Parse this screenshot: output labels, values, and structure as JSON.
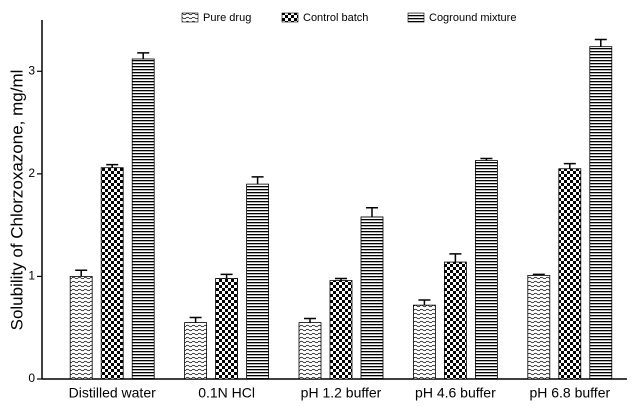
{
  "chart_data": {
    "type": "bar",
    "y_label": "Solubility of Chlorzoxazone, mg/ml",
    "categories": [
      "Distilled water",
      "0.1N HCl",
      "pH 1.2 buffer",
      "pH 4.6 buffer",
      "pH 6.8 buffer"
    ],
    "series": [
      {
        "name": "Pure drug",
        "color": "#000000",
        "pattern": "wave",
        "values": [
          1.0,
          0.55,
          0.55,
          0.72,
          1.01
        ],
        "errors": [
          0.06,
          0.05,
          0.04,
          0.05,
          0.01
        ]
      },
      {
        "name": "Control batch",
        "color": "#000000",
        "pattern": "checker",
        "values": [
          2.06,
          0.98,
          0.96,
          1.14,
          2.05
        ],
        "errors": [
          0.03,
          0.04,
          0.02,
          0.08,
          0.05
        ]
      },
      {
        "name": "Coground mixture",
        "color": "#000000",
        "pattern": "hlines",
        "values": [
          3.12,
          1.9,
          1.58,
          2.13,
          3.24
        ],
        "errors": [
          0.06,
          0.07,
          0.09,
          0.02,
          0.07
        ]
      }
    ],
    "ylim": [
      0,
      3.5
    ],
    "yticks": [
      0,
      1,
      2,
      3
    ],
    "legend": "top"
  }
}
